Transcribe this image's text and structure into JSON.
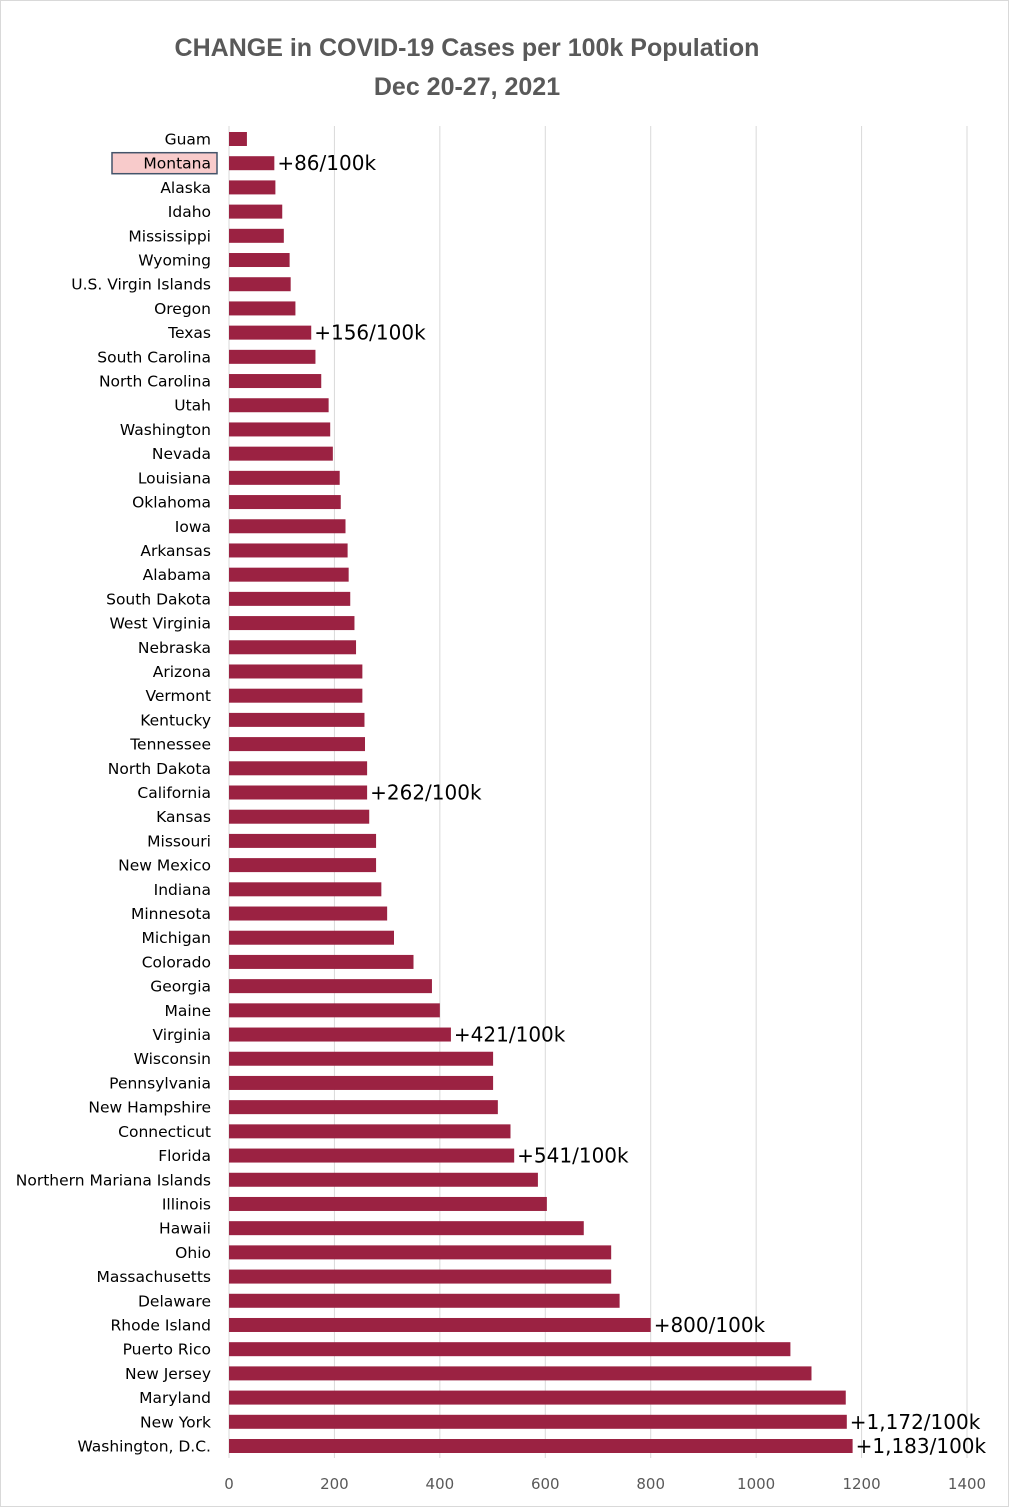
{
  "chart_data": {
    "type": "bar",
    "orientation": "horizontal",
    "title": "CHANGE in COVID-19 Cases per 100k Population",
    "subtitle": "Dec 20-27, 2021",
    "xlim": [
      0,
      1400
    ],
    "x_ticks": [
      0,
      200,
      400,
      600,
      800,
      1000,
      1200,
      1400
    ],
    "grid": "vertical",
    "legend": "none",
    "bar_color": "#9B2242",
    "highlight_category": "Montana",
    "highlight_fill": "#F8CBCB",
    "highlight_border": "#44546A",
    "categories": [
      "Guam",
      "Montana",
      "Alaska",
      "Idaho",
      "Mississippi",
      "Wyoming",
      "U.S. Virgin Islands",
      "Oregon",
      "Texas",
      "South Carolina",
      "North Carolina",
      "Utah",
      "Washington",
      "Nevada",
      "Louisiana",
      "Oklahoma",
      "Iowa",
      "Arkansas",
      "Alabama",
      "South Dakota",
      "West Virginia",
      "Nebraska",
      "Arizona",
      "Vermont",
      "Kentucky",
      "Tennessee",
      "North Dakota",
      "California",
      "Kansas",
      "Missouri",
      "New Mexico",
      "Indiana",
      "Minnesota",
      "Michigan",
      "Colorado",
      "Georgia",
      "Maine",
      "Virginia",
      "Wisconsin",
      "Pennsylvania",
      "New Hampshire",
      "Connecticut",
      "Florida",
      "Northern Mariana Islands",
      "Illinois",
      "Hawaii",
      "Ohio",
      "Massachusetts",
      "Delaware",
      "Rhode Island",
      "Puerto Rico",
      "New Jersey",
      "Maryland",
      "New York",
      "Washington, D.C."
    ],
    "values": [
      34,
      86,
      88,
      101,
      104,
      115,
      117,
      126,
      156,
      164,
      175,
      189,
      192,
      197,
      210,
      212,
      221,
      225,
      227,
      230,
      238,
      241,
      253,
      253,
      257,
      258,
      262,
      262,
      266,
      279,
      279,
      289,
      300,
      313,
      350,
      385,
      400,
      421,
      501,
      501,
      510,
      534,
      541,
      586,
      603,
      673,
      725,
      725,
      741,
      800,
      1065,
      1105,
      1170,
      1172,
      1183
    ],
    "annotations": [
      {
        "category": "Montana",
        "text": "+86/100k"
      },
      {
        "category": "Texas",
        "text": "+156/100k"
      },
      {
        "category": "California",
        "text": "+262/100k"
      },
      {
        "category": "Virginia",
        "text": "+421/100k"
      },
      {
        "category": "Florida",
        "text": "+541/100k"
      },
      {
        "category": "Rhode Island",
        "text": "+800/100k"
      },
      {
        "category": "New York",
        "text": "+1,172/100k"
      },
      {
        "category": "Washington, D.C.",
        "text": "+1,183/100k"
      }
    ]
  }
}
